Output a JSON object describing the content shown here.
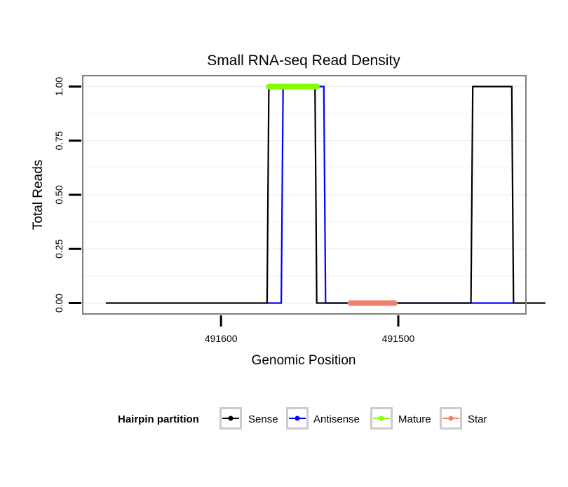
{
  "chart_data": {
    "type": "line",
    "title": "Small RNA-seq Read Density",
    "xlabel": "Genomic Position",
    "ylabel": "Total Reads",
    "x_reversed": true,
    "xlim": [
      491678,
      491428
    ],
    "ylim": [
      -0.05,
      1.05
    ],
    "y_ticks": [
      {
        "value": 0.0,
        "label": "0.00"
      },
      {
        "value": 0.25,
        "label": "0.25"
      },
      {
        "value": 0.5,
        "label": "0.50"
      },
      {
        "value": 0.75,
        "label": "0.75"
      },
      {
        "value": 1.0,
        "label": "1.00"
      }
    ],
    "x_ticks": [
      {
        "value": 491600,
        "label": "491600"
      },
      {
        "value": 491500,
        "label": "491500"
      }
    ],
    "series": [
      {
        "name": "Sense",
        "color": "#000000",
        "kind": "line",
        "points": [
          [
            491665,
            0
          ],
          [
            491574,
            0
          ],
          [
            491573,
            1
          ],
          [
            491547,
            1
          ],
          [
            491546,
            0
          ],
          [
            491459,
            0
          ],
          [
            491458,
            1
          ],
          [
            491436,
            1
          ],
          [
            491435,
            0
          ],
          [
            491417,
            0
          ]
        ]
      },
      {
        "name": "Antisense",
        "color": "#0000ff",
        "kind": "line",
        "points": [
          [
            491574,
            0
          ],
          [
            491566,
            0
          ],
          [
            491565,
            1
          ],
          [
            491542,
            1
          ],
          [
            491541,
            0
          ],
          [
            491458,
            0
          ],
          [
            491435,
            0
          ]
        ]
      },
      {
        "name": "Mature",
        "color": "#7fff00",
        "kind": "segment",
        "points": [
          [
            491573,
            1
          ],
          [
            491546,
            1
          ]
        ]
      },
      {
        "name": "Star",
        "color": "#f08070",
        "kind": "segment",
        "points": [
          [
            491527,
            0
          ],
          [
            491502,
            0
          ]
        ]
      }
    ],
    "legend": {
      "title": "Hairpin partition",
      "position": "bottom",
      "entries": [
        "Sense",
        "Antisense",
        "Mature",
        "Star"
      ]
    },
    "grid": true
  }
}
